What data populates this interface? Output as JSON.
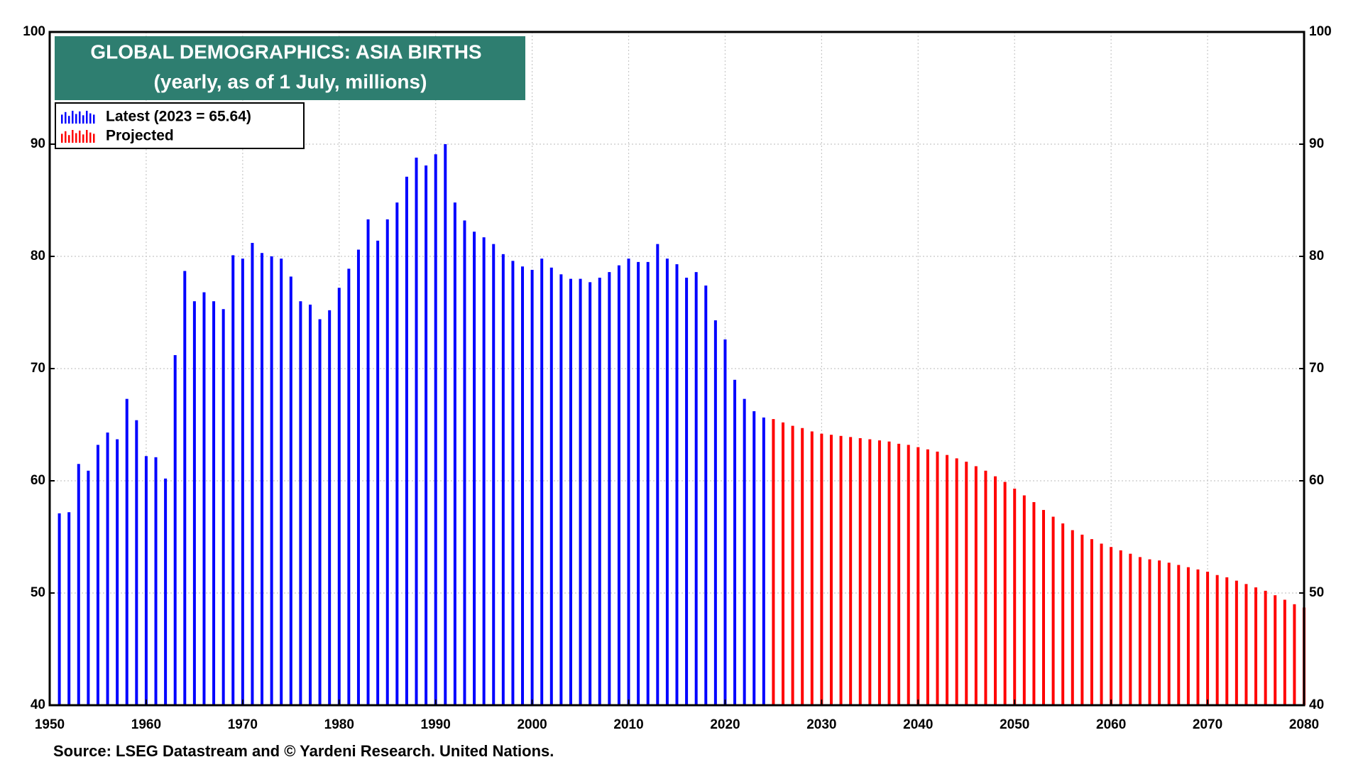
{
  "chart_data": {
    "type": "bar",
    "title": "GLOBAL DEMOGRAPHICS: ASIA BIRTHS",
    "subtitle": "(yearly, as of 1 July, millions)",
    "source": "Source: LSEG Datastream and © Yardeni Research. United Nations.",
    "xlim": [
      1950,
      2080
    ],
    "xticks": [
      1950,
      1960,
      1970,
      1980,
      1990,
      2000,
      2010,
      2020,
      2030,
      2040,
      2050,
      2060,
      2070,
      2080
    ],
    "ylim": [
      40,
      100
    ],
    "yticks": [
      40,
      50,
      60,
      70,
      80,
      90,
      100
    ],
    "grid": true,
    "legend": "top-left",
    "series": [
      {
        "name": "Latest (2023 = 65.64)",
        "color": "#0000ff",
        "x": [
          1950,
          1951,
          1952,
          1953,
          1954,
          1955,
          1956,
          1957,
          1958,
          1959,
          1960,
          1961,
          1962,
          1963,
          1964,
          1965,
          1966,
          1967,
          1968,
          1969,
          1970,
          1971,
          1972,
          1973,
          1974,
          1975,
          1976,
          1977,
          1978,
          1979,
          1980,
          1981,
          1982,
          1983,
          1984,
          1985,
          1986,
          1987,
          1988,
          1989,
          1990,
          1991,
          1992,
          1993,
          1994,
          1995,
          1996,
          1997,
          1998,
          1999,
          2000,
          2001,
          2002,
          2003,
          2004,
          2005,
          2006,
          2007,
          2008,
          2009,
          2010,
          2011,
          2012,
          2013,
          2014,
          2015,
          2016,
          2017,
          2018,
          2019,
          2020,
          2021,
          2022,
          2023
        ],
        "values": [
          57.1,
          57.2,
          61.5,
          60.9,
          63.2,
          64.3,
          63.7,
          67.3,
          65.4,
          62.2,
          62.1,
          60.2,
          71.2,
          78.7,
          76.0,
          76.8,
          76.0,
          75.3,
          80.1,
          79.8,
          81.2,
          80.3,
          80.0,
          79.8,
          78.2,
          76.0,
          75.7,
          74.4,
          75.2,
          77.2,
          78.9,
          80.6,
          83.3,
          81.4,
          83.3,
          84.8,
          87.1,
          88.8,
          88.1,
          89.1,
          90.0,
          84.8,
          83.2,
          82.2,
          81.7,
          81.1,
          80.2,
          79.6,
          79.1,
          78.8,
          79.8,
          79.0,
          78.4,
          78.0,
          78.0,
          77.7,
          78.1,
          78.6,
          79.2,
          79.8,
          79.5,
          79.5,
          81.1,
          79.8,
          79.3,
          78.1,
          78.6,
          77.4,
          74.3,
          72.6,
          69.0,
          67.3,
          66.2,
          65.64
        ]
      },
      {
        "name": "Projected",
        "color": "#ff0000",
        "x": [
          2024,
          2025,
          2026,
          2027,
          2028,
          2029,
          2030,
          2031,
          2032,
          2033,
          2034,
          2035,
          2036,
          2037,
          2038,
          2039,
          2040,
          2041,
          2042,
          2043,
          2044,
          2045,
          2046,
          2047,
          2048,
          2049,
          2050,
          2051,
          2052,
          2053,
          2054,
          2055,
          2056,
          2057,
          2058,
          2059,
          2060,
          2061,
          2062,
          2063,
          2064,
          2065,
          2066,
          2067,
          2068,
          2069,
          2070,
          2071,
          2072,
          2073,
          2074,
          2075,
          2076,
          2077,
          2078,
          2079
        ],
        "values": [
          65.5,
          65.2,
          64.9,
          64.7,
          64.4,
          64.2,
          64.1,
          64.0,
          63.9,
          63.8,
          63.7,
          63.6,
          63.5,
          63.3,
          63.2,
          63.0,
          62.8,
          62.6,
          62.3,
          62.0,
          61.7,
          61.3,
          60.9,
          60.4,
          59.9,
          59.3,
          58.7,
          58.1,
          57.4,
          56.8,
          56.2,
          55.6,
          55.2,
          54.8,
          54.4,
          54.1,
          53.8,
          53.5,
          53.2,
          53.0,
          52.9,
          52.7,
          52.5,
          52.3,
          52.1,
          51.9,
          51.6,
          51.4,
          51.1,
          50.8,
          50.5,
          50.2,
          49.8,
          49.4,
          49.0,
          48.7
        ]
      }
    ]
  }
}
